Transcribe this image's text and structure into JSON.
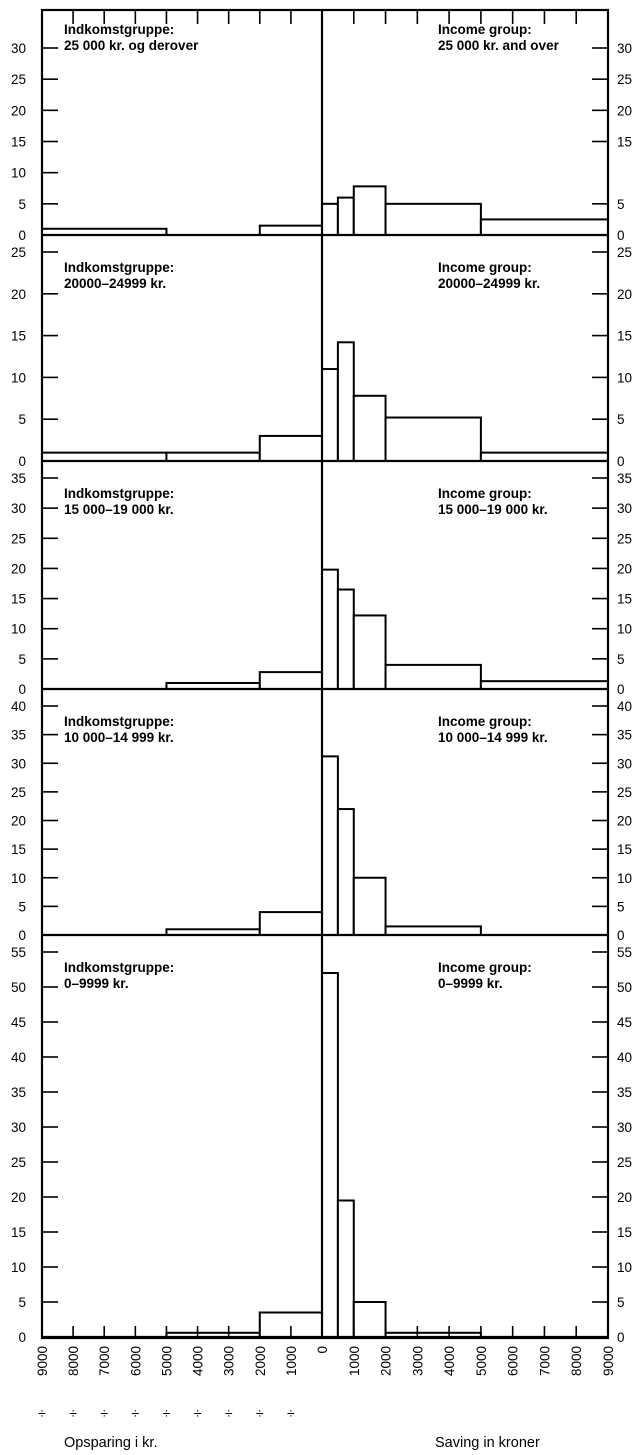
{
  "chart_data": {
    "type": "bar",
    "x_unit_negative_prefix": "÷",
    "x_ticks": [
      -9000,
      -8000,
      -7000,
      -6000,
      -5000,
      -4000,
      -3000,
      -2000,
      -1000,
      0,
      1000,
      2000,
      3000,
      4000,
      5000,
      6000,
      7000,
      8000,
      9000
    ],
    "x_tick_labels": [
      "9000",
      "8000",
      "7000",
      "6000",
      "5000",
      "4000",
      "3000",
      "2000",
      "1000",
      "0",
      "1000",
      "2000",
      "3000",
      "4000",
      "5000",
      "6000",
      "7000",
      "8000",
      "9000"
    ],
    "xlim": [
      -9000,
      9000
    ],
    "xlabel_left": "Opsparing i kr.",
    "xlabel_right": "Saving in kroner",
    "panels": [
      {
        "label_left_line1": "Indkomstgruppe:",
        "label_left_line2": "25 000 kr. og derover",
        "label_right_line1": "Income group:",
        "label_right_line2": "25 000 kr. and over",
        "ylim": [
          0,
          30
        ],
        "y_ticks": [
          0,
          5,
          10,
          15,
          20,
          25,
          30
        ],
        "y_ticks_right": [
          0,
          5,
          15,
          20,
          25,
          30
        ],
        "bars": [
          {
            "x0": -9000,
            "x1": -5000,
            "value": 1.0
          },
          {
            "x0": -5000,
            "x1": -2000,
            "value": 0
          },
          {
            "x0": -2000,
            "x1": 0,
            "value": 1.5
          },
          {
            "x0": 0,
            "x1": 500,
            "value": 5.0
          },
          {
            "x0": 500,
            "x1": 1000,
            "value": 6.0
          },
          {
            "x0": 1000,
            "x1": 2000,
            "value": 7.8
          },
          {
            "x0": 2000,
            "x1": 5000,
            "value": 5.0
          },
          {
            "x0": 5000,
            "x1": 9000,
            "value": 2.5
          }
        ]
      },
      {
        "label_left_line1": "Indkomstgruppe:",
        "label_left_line2": "20000–24999 kr.",
        "label_right_line1": "Income group:",
        "label_right_line2": "20000–24999 kr.",
        "ylim": [
          0,
          25
        ],
        "y_ticks": [
          0,
          5,
          10,
          15,
          20,
          25
        ],
        "y_ticks_right": [
          0,
          5,
          10,
          15,
          20,
          25
        ],
        "bars": [
          {
            "x0": -9000,
            "x1": -5000,
            "value": 1.0
          },
          {
            "x0": -5000,
            "x1": -2000,
            "value": 1.0
          },
          {
            "x0": -2000,
            "x1": 0,
            "value": 3.0
          },
          {
            "x0": 0,
            "x1": 500,
            "value": 11.0
          },
          {
            "x0": 500,
            "x1": 1000,
            "value": 14.2
          },
          {
            "x0": 1000,
            "x1": 2000,
            "value": 7.8
          },
          {
            "x0": 2000,
            "x1": 5000,
            "value": 5.2
          },
          {
            "x0": 5000,
            "x1": 9000,
            "value": 1.0
          }
        ]
      },
      {
        "label_left_line1": "Indkomstgruppe:",
        "label_left_line2": "15 000–19 000 kr.",
        "label_right_line1": "Income group:",
        "label_right_line2": "15 000–19 000 kr.",
        "ylim": [
          0,
          35
        ],
        "y_ticks": [
          0,
          5,
          10,
          15,
          20,
          25,
          30,
          35
        ],
        "y_ticks_right": [
          0,
          5,
          10,
          15,
          20,
          25,
          30,
          35
        ],
        "bars": [
          {
            "x0": -9000,
            "x1": -5000,
            "value": 0
          },
          {
            "x0": -5000,
            "x1": -2000,
            "value": 1.0
          },
          {
            "x0": -2000,
            "x1": 0,
            "value": 2.8
          },
          {
            "x0": 0,
            "x1": 500,
            "value": 19.8
          },
          {
            "x0": 500,
            "x1": 1000,
            "value": 16.5
          },
          {
            "x0": 1000,
            "x1": 2000,
            "value": 12.2
          },
          {
            "x0": 2000,
            "x1": 5000,
            "value": 4.0
          },
          {
            "x0": 5000,
            "x1": 9000,
            "value": 1.3
          }
        ]
      },
      {
        "label_left_line1": "Indkomstgruppe:",
        "label_left_line2": "10 000–14 999 kr.",
        "label_right_line1": "Income group:",
        "label_right_line2": "10 000–14 999 kr.",
        "ylim": [
          0,
          40
        ],
        "y_ticks": [
          0,
          5,
          10,
          15,
          20,
          25,
          30,
          35,
          40
        ],
        "y_ticks_right": [
          0,
          5,
          10,
          15,
          20,
          25,
          30,
          35,
          40
        ],
        "bars": [
          {
            "x0": -9000,
            "x1": -5000,
            "value": 0
          },
          {
            "x0": -5000,
            "x1": -2000,
            "value": 1.0
          },
          {
            "x0": -2000,
            "x1": 0,
            "value": 4.0
          },
          {
            "x0": 0,
            "x1": 500,
            "value": 31.2
          },
          {
            "x0": 500,
            "x1": 1000,
            "value": 22.0
          },
          {
            "x0": 1000,
            "x1": 2000,
            "value": 10.0
          },
          {
            "x0": 2000,
            "x1": 5000,
            "value": 1.5
          },
          {
            "x0": 5000,
            "x1": 9000,
            "value": 0
          }
        ]
      },
      {
        "label_left_line1": "Indkomstgruppe:",
        "label_left_line2": "0–9999 kr.",
        "label_right_line1": "Income group:",
        "label_right_line2": "0–9999 kr.",
        "ylim": [
          0,
          55
        ],
        "y_ticks": [
          0,
          5,
          10,
          15,
          20,
          25,
          30,
          35,
          40,
          45,
          50,
          55
        ],
        "y_ticks_right": [
          0,
          5,
          10,
          15,
          20,
          25,
          30,
          35,
          40,
          45,
          50,
          55
        ],
        "bars": [
          {
            "x0": -9000,
            "x1": -5000,
            "value": 0
          },
          {
            "x0": -5000,
            "x1": -2000,
            "value": 0.6
          },
          {
            "x0": -2000,
            "x1": 0,
            "value": 3.5
          },
          {
            "x0": 0,
            "x1": 500,
            "value": 52.0
          },
          {
            "x0": 500,
            "x1": 1000,
            "value": 19.5
          },
          {
            "x0": 1000,
            "x1": 2000,
            "value": 5.0
          },
          {
            "x0": 2000,
            "x1": 5000,
            "value": 0.6
          },
          {
            "x0": 5000,
            "x1": 9000,
            "value": 0
          }
        ]
      }
    ]
  }
}
